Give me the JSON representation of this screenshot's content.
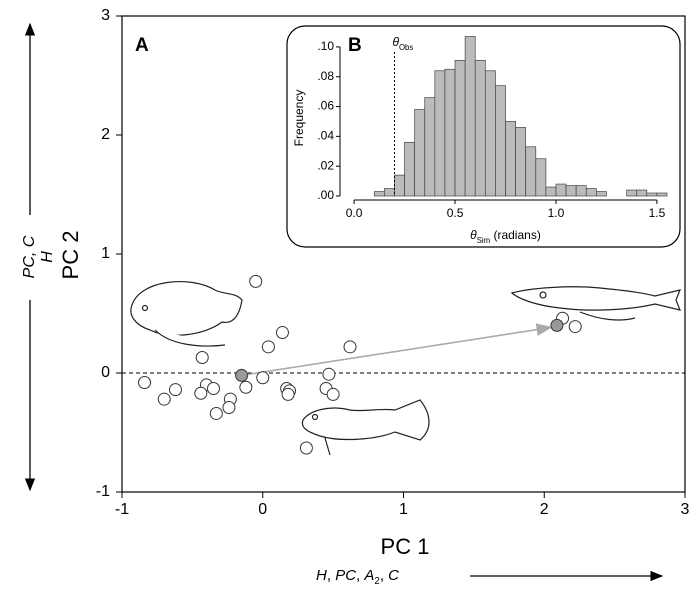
{
  "chart_data": [
    {
      "type": "scatter",
      "panel_label": "A",
      "x_label": "PC 1",
      "y_label": "PC 2",
      "xlim": [
        -1,
        3
      ],
      "ylim": [
        -1,
        3
      ],
      "xticks": [
        -1,
        0,
        1,
        2,
        3
      ],
      "yticks": [
        -1,
        0,
        1,
        2,
        3
      ],
      "reference_line": 0,
      "x_direction_label": [
        {
          "text": "H",
          "style": "italic"
        },
        {
          "text": ", ",
          "style": "normal"
        },
        {
          "text": "PC",
          "style": "italic"
        },
        {
          "text": ", ",
          "style": "normal"
        },
        {
          "text": "A",
          "style": "italic"
        },
        {
          "text": "2",
          "style": "sub"
        },
        {
          "text": ", ",
          "style": "normal"
        },
        {
          "text": "C",
          "style": "italic"
        }
      ],
      "y_direction_label": [
        "PC, C",
        "H"
      ],
      "series": [
        {
          "color": "#ffffff",
          "x": [
            -0.05,
            0.04,
            0.14,
            0.62,
            -0.43,
            -0.84,
            -0.7,
            -0.62,
            -0.4,
            -0.35,
            -0.44,
            -0.23,
            -0.33,
            -0.24,
            -0.12,
            0.0,
            0.17,
            0.19,
            0.18,
            0.45,
            0.47,
            0.5,
            0.31,
            2.13,
            2.22
          ],
          "values": [
            0.77,
            0.22,
            0.34,
            0.22,
            0.13,
            -0.08,
            -0.22,
            -0.14,
            -0.1,
            -0.13,
            -0.17,
            -0.22,
            -0.34,
            -0.29,
            -0.12,
            -0.04,
            -0.13,
            -0.15,
            -0.18,
            -0.13,
            -0.01,
            -0.18,
            -0.63,
            0.46,
            0.39
          ]
        },
        {
          "color": "#999999",
          "x": [
            -0.15,
            2.09
          ],
          "values": [
            -0.02,
            0.4
          ]
        }
      ]
    },
    {
      "type": "histogram",
      "panel_label": "B",
      "y_label": "Frequency",
      "x_label": [
        {
          "text": "θ",
          "style": "italic"
        },
        {
          "text": "Sim",
          "style": "sub"
        },
        {
          "text": " (radians)",
          "style": "normal"
        }
      ],
      "threshold": {
        "value": 0.2,
        "label": [
          {
            "text": "θ",
            "style": "italic"
          },
          {
            "text": "Obs",
            "style": "sub"
          }
        ]
      },
      "color": "#bbbbbb",
      "xlim": [
        -0.05,
        1.55
      ],
      "ylim": [
        0,
        0.11
      ],
      "xticks": [
        {
          "value": 0,
          "label": "0.0"
        },
        {
          "value": 0.5,
          "label": "0.5"
        },
        {
          "value": 1,
          "label": "1.0"
        },
        {
          "value": 1.5,
          "label": "1.5"
        }
      ],
      "yticks": [
        {
          "value": 0,
          "label": ".00"
        },
        {
          "value": 0.02,
          "label": ".02"
        },
        {
          "value": 0.04,
          "label": ".04"
        },
        {
          "value": 0.06,
          "label": ".06"
        },
        {
          "value": 0.08,
          "label": ".08"
        },
        {
          "value": 0.1,
          "label": ".10"
        }
      ],
      "bins": [
        0.1,
        0.15,
        0.2,
        0.25,
        0.3,
        0.35,
        0.4,
        0.45,
        0.5,
        0.55,
        0.6,
        0.65,
        0.7,
        0.75,
        0.8,
        0.85,
        0.9,
        0.95,
        1.0,
        1.05,
        1.1,
        1.15,
        1.2,
        1.25,
        1.3,
        1.35,
        1.4,
        1.45,
        1.5,
        1.55
      ],
      "values": [
        0.003,
        0.005,
        0.014,
        0.036,
        0.058,
        0.066,
        0.084,
        0.085,
        0.091,
        0.107,
        0.091,
        0.084,
        0.074,
        0.05,
        0.046,
        0.033,
        0.025,
        0.006,
        0.008,
        0.007,
        0.007,
        0.005,
        0.003,
        0,
        0,
        0.004,
        0.004,
        0.002,
        0.002
      ]
    }
  ]
}
